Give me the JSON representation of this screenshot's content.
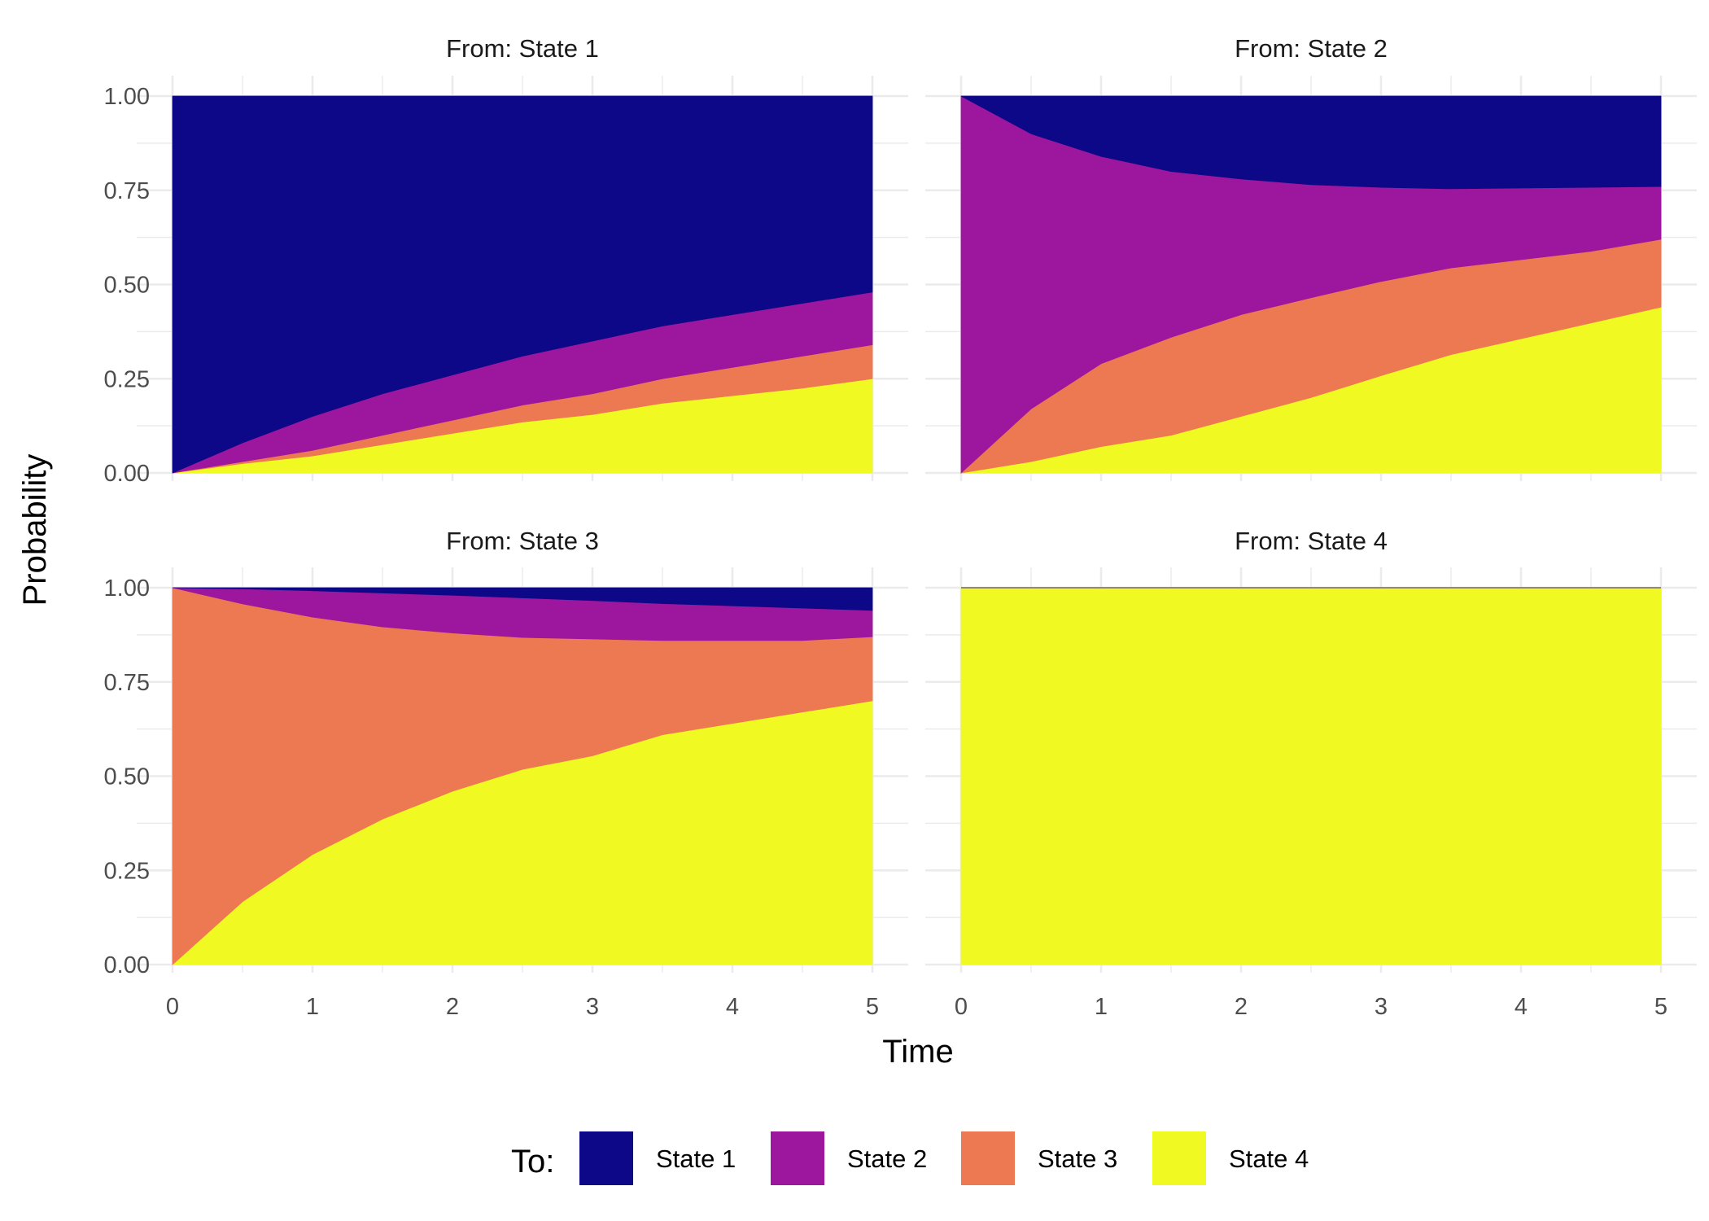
{
  "chart_data": {
    "type": "area",
    "stacked": true,
    "facet_by": "From",
    "xlabel": "Time",
    "ylabel": "Probability",
    "xlim": [
      0,
      5
    ],
    "ylim": [
      0,
      1
    ],
    "x_ticks": [
      "0",
      "1",
      "2",
      "3",
      "4",
      "5"
    ],
    "y_ticks": [
      "0.00",
      "0.25",
      "0.50",
      "0.75",
      "1.00"
    ],
    "grid": true,
    "legend": {
      "title": "To:",
      "position": "bottom",
      "entries": [
        {
          "name": "State 1",
          "color": "#0d0887"
        },
        {
          "name": "State 2",
          "color": "#9c179e"
        },
        {
          "name": "State 3",
          "color": "#ed7953"
        },
        {
          "name": "State 4",
          "color": "#f0f921"
        }
      ]
    },
    "x": [
      0,
      0.5,
      1,
      1.5,
      2,
      2.5,
      3,
      3.5,
      4,
      4.5,
      5
    ],
    "stack_order": [
      "State 4",
      "State 3",
      "State 2",
      "State 1"
    ],
    "panels": [
      {
        "strip": "From: State 1",
        "series": [
          {
            "name": "State 1",
            "values": [
              1,
              0.92,
              0.85,
              0.79,
              0.74,
              0.69,
              0.65,
              0.61,
              0.58,
              0.55,
              0.52
            ]
          },
          {
            "name": "State 2",
            "values": [
              0,
              0.05,
              0.09,
              0.11,
              0.12,
              0.13,
              0.14,
              0.14,
              0.14,
              0.14,
              0.14
            ]
          },
          {
            "name": "State 3",
            "values": [
              0,
              0.005,
              0.015,
              0.025,
              0.035,
              0.045,
              0.055,
              0.065,
              0.075,
              0.085,
              0.09
            ]
          },
          {
            "name": "State 4",
            "values": [
              0,
              0.025,
              0.045,
              0.075,
              0.105,
              0.135,
              0.155,
              0.185,
              0.205,
              0.225,
              0.25
            ]
          }
        ]
      },
      {
        "strip": "From: State 2",
        "series": [
          {
            "name": "State 1",
            "values": [
              0,
              0.1,
              0.16,
              0.2,
              0.22,
              0.235,
              0.242,
              0.246,
              0.244,
              0.242,
              0.24
            ]
          },
          {
            "name": "State 2",
            "values": [
              1,
              0.73,
              0.55,
              0.44,
              0.36,
              0.3,
              0.25,
              0.21,
              0.19,
              0.17,
              0.14
            ]
          },
          {
            "name": "State 3",
            "values": [
              0,
              0.14,
              0.22,
              0.26,
              0.27,
              0.265,
              0.25,
              0.23,
              0.21,
              0.19,
              0.18
            ]
          },
          {
            "name": "State 4",
            "values": [
              0,
              0.03,
              0.07,
              0.1,
              0.15,
              0.2,
              0.258,
              0.314,
              0.356,
              0.398,
              0.44
            ]
          }
        ]
      },
      {
        "strip": "From: State 3",
        "series": [
          {
            "name": "State 1",
            "values": [
              0,
              0.003,
              0.008,
              0.014,
              0.02,
              0.027,
              0.034,
              0.042,
              0.048,
              0.054,
              0.06
            ]
          },
          {
            "name": "State 2",
            "values": [
              0,
              0.04,
              0.07,
              0.09,
              0.1,
              0.105,
              0.102,
              0.098,
              0.092,
              0.086,
              0.07
            ]
          },
          {
            "name": "State 3",
            "values": [
              1,
              0.79,
              0.63,
              0.51,
              0.42,
              0.35,
              0.31,
              0.25,
              0.22,
              0.19,
              0.17
            ]
          },
          {
            "name": "State 4",
            "values": [
              0,
              0.167,
              0.292,
              0.386,
              0.46,
              0.518,
              0.554,
              0.61,
              0.64,
              0.67,
              0.7
            ]
          }
        ]
      },
      {
        "strip": "From: State 4",
        "series": [
          {
            "name": "State 1",
            "values": [
              0,
              0,
              0,
              0,
              0,
              0,
              0,
              0,
              0,
              0,
              0
            ]
          },
          {
            "name": "State 2",
            "values": [
              0,
              0,
              0,
              0,
              0,
              0,
              0,
              0,
              0,
              0,
              0
            ]
          },
          {
            "name": "State 3",
            "values": [
              0,
              0,
              0,
              0,
              0,
              0,
              0,
              0,
              0,
              0,
              0
            ]
          },
          {
            "name": "State 4",
            "values": [
              1,
              1,
              1,
              1,
              1,
              1,
              1,
              1,
              1,
              1,
              1
            ]
          }
        ]
      }
    ]
  }
}
